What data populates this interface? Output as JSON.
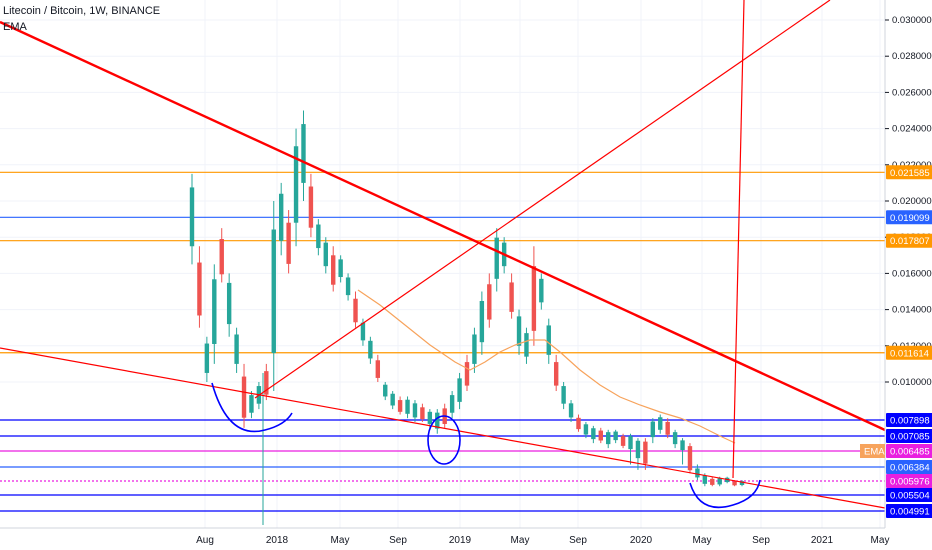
{
  "header": {
    "title": "Litecoin / Bitcoin, 1W, BINANCE",
    "indicator": "EMA"
  },
  "colors": {
    "up": "#26a69a",
    "down": "#ef5350",
    "trend_red": "#ff0000",
    "orange": "#ff9800",
    "blue": "#2962ff",
    "navy": "#0000ff",
    "magenta": "#e91ee0",
    "ema": "#f7a35c",
    "price_label": "#ff5252"
  },
  "chart_data": {
    "type": "candlestick",
    "symbol": "Litecoin / Bitcoin",
    "interval": "1W",
    "exchange": "BINANCE",
    "y_ticks": [
      "0.030000",
      "0.028000",
      "0.026000",
      "0.024000",
      "0.022000",
      "0.020000",
      "0.018000",
      "0.016000",
      "0.014000",
      "0.012000",
      "0.010000"
    ],
    "x_ticks": [
      "Aug",
      "2018",
      "May",
      "Sep",
      "2019",
      "May",
      "Sep",
      "2020",
      "May",
      "Sep",
      "2021",
      "May"
    ],
    "ylim": [
      0.0042,
      0.0308
    ],
    "horizontal_levels": [
      {
        "value": 0.021585,
        "label": "0.021585",
        "color": "#ff9800"
      },
      {
        "value": 0.019099,
        "label": "0.019099",
        "color": "#2962ff"
      },
      {
        "value": 0.017807,
        "label": "0.017807",
        "color": "#ff9800"
      },
      {
        "value": 0.011614,
        "label": "0.011614",
        "color": "#ff9800"
      },
      {
        "value": 0.007898,
        "label": "0.007898",
        "color": "#0000ff"
      },
      {
        "value": 0.007085,
        "label": "0.007085",
        "color": "#0000ff"
      },
      {
        "value": 0.006485,
        "label": "0.006485",
        "color": "#e91ee0"
      },
      {
        "value": 0.006384,
        "label": "0.006384",
        "color": "#2962ff"
      },
      {
        "value": 0.005976,
        "label": "0.005976",
        "color": "#e91ee0"
      },
      {
        "value": 0.005504,
        "label": "0.005504",
        "color": "#0000ff"
      },
      {
        "value": 0.004991,
        "label": "0.004991",
        "color": "#0000ff"
      }
    ],
    "ema_label": "EMA",
    "ema_value": "0.006485",
    "price_path": [
      [
        0.0165,
        0.0215
      ],
      [
        0.013,
        0.0175
      ],
      [
        0.01,
        0.0125
      ],
      [
        0.011,
        0.0165
      ],
      [
        0.0155,
        0.0185
      ],
      [
        0.0125,
        0.016
      ],
      [
        0.0105,
        0.013
      ],
      [
        0.0075,
        0.011
      ],
      [
        0.008,
        0.0095
      ],
      [
        0.0085,
        0.01
      ],
      [
        0.009,
        0.011
      ],
      [
        0.0095,
        0.02
      ],
      [
        0.017,
        0.021
      ],
      [
        0.016,
        0.0195
      ],
      [
        0.0175,
        0.024
      ],
      [
        0.02,
        0.025
      ],
      [
        0.018,
        0.0215
      ],
      [
        0.017,
        0.019
      ],
      [
        0.016,
        0.018
      ],
      [
        0.015,
        0.0175
      ],
      [
        0.0155,
        0.017
      ],
      [
        0.0145,
        0.016
      ],
      [
        0.013,
        0.015
      ],
      [
        0.012,
        0.0135
      ],
      [
        0.011,
        0.0125
      ],
      [
        0.01,
        0.0115
      ],
      [
        0.009,
        0.01
      ],
      [
        0.0085,
        0.0095
      ],
      [
        0.0082,
        0.0092
      ],
      [
        0.008,
        0.0092
      ],
      [
        0.0078,
        0.009
      ],
      [
        0.0078,
        0.0088
      ],
      [
        0.0075,
        0.0085
      ],
      [
        0.0072,
        0.0085
      ],
      [
        0.0075,
        0.0088
      ],
      [
        0.008,
        0.0095
      ],
      [
        0.0085,
        0.0105
      ],
      [
        0.0095,
        0.0115
      ],
      [
        0.0105,
        0.013
      ],
      [
        0.0115,
        0.015
      ],
      [
        0.013,
        0.016
      ],
      [
        0.015,
        0.0185
      ],
      [
        0.016,
        0.018
      ],
      [
        0.0135,
        0.016
      ],
      [
        0.0115,
        0.014
      ],
      [
        0.011,
        0.013
      ],
      [
        0.012,
        0.0175
      ],
      [
        0.014,
        0.016
      ],
      [
        0.011,
        0.0135
      ],
      [
        0.0095,
        0.0115
      ],
      [
        0.0085,
        0.01
      ],
      [
        0.0078,
        0.009
      ],
      [
        0.0073,
        0.0082
      ],
      [
        0.007,
        0.0078
      ],
      [
        0.0068,
        0.0076
      ],
      [
        0.0068,
        0.0075
      ],
      [
        0.0066,
        0.0074
      ],
      [
        0.0068,
        0.0074
      ],
      [
        0.0066,
        0.0072
      ],
      [
        0.0064,
        0.0072
      ],
      [
        0.0063,
        0.007
      ],
      [
        0.0063,
        0.007
      ],
      [
        0.0068,
        0.008
      ],
      [
        0.0072,
        0.0082
      ],
      [
        0.007,
        0.008
      ],
      [
        0.0066,
        0.0074
      ],
      [
        0.0064,
        0.007
      ],
      [
        0.0062,
        0.0068
      ],
      [
        0.006,
        0.0064
      ],
      [
        0.0058,
        0.0062
      ],
      [
        0.0058,
        0.0061
      ],
      [
        0.0058,
        0.0061
      ],
      [
        0.0059,
        0.0061
      ],
      [
        0.0058,
        0.006
      ],
      [
        0.0058,
        0.006
      ]
    ]
  }
}
